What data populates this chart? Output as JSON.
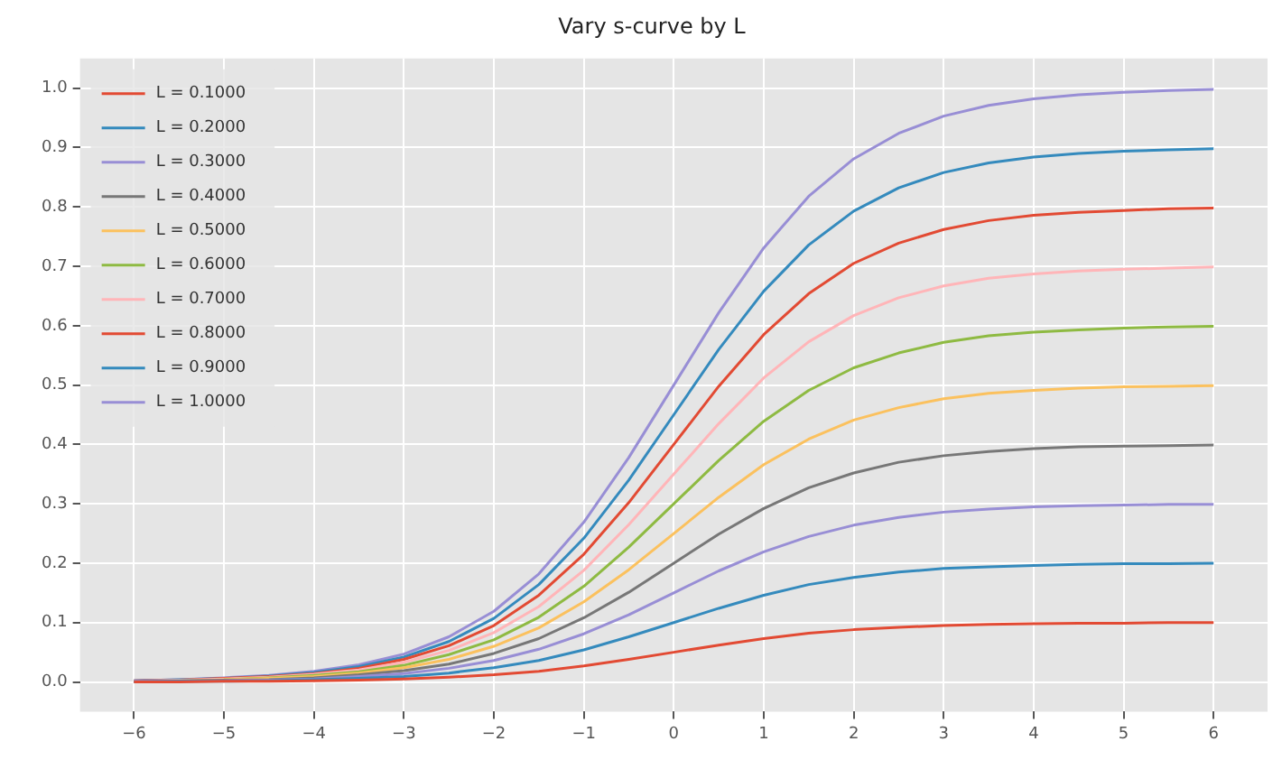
{
  "chart_data": {
    "type": "line",
    "title": "Vary s-curve by L",
    "x": [
      -6,
      -5.5,
      -5,
      -4.5,
      -4,
      -3.5,
      -3,
      -2.5,
      -2,
      -1.5,
      -1,
      -0.5,
      0,
      0.5,
      1,
      1.5,
      2,
      2.5,
      3,
      3.5,
      4,
      4.5,
      5,
      5.5,
      6
    ],
    "series": [
      {
        "name": "L = 0.1000",
        "color": "#e24a33",
        "values": [
          0.0,
          0.0,
          0.001,
          0.001,
          0.002,
          0.003,
          0.005,
          0.008,
          0.012,
          0.018,
          0.027,
          0.038,
          0.05,
          0.062,
          0.073,
          0.082,
          0.088,
          0.092,
          0.095,
          0.097,
          0.098,
          0.099,
          0.099,
          0.1,
          0.1
        ]
      },
      {
        "name": "L = 0.2000",
        "color": "#348abd",
        "values": [
          0,
          0.001,
          0.001,
          0.002,
          0.004,
          0.006,
          0.009,
          0.015,
          0.024,
          0.036,
          0.054,
          0.076,
          0.1,
          0.124,
          0.146,
          0.164,
          0.176,
          0.185,
          0.191,
          0.194,
          0.196,
          0.198,
          0.199,
          0.199,
          0.2
        ]
      },
      {
        "name": "L = 0.3000",
        "color": "#988ed5",
        "values": [
          0.001,
          0.001,
          0.002,
          0.003,
          0.005,
          0.009,
          0.014,
          0.023,
          0.036,
          0.055,
          0.081,
          0.113,
          0.15,
          0.187,
          0.219,
          0.245,
          0.264,
          0.277,
          0.286,
          0.291,
          0.295,
          0.297,
          0.298,
          0.299,
          0.299
        ]
      },
      {
        "name": "L = 0.4000",
        "color": "#777777",
        "values": [
          0.001,
          0.002,
          0.003,
          0.004,
          0.007,
          0.012,
          0.019,
          0.03,
          0.048,
          0.073,
          0.108,
          0.151,
          0.2,
          0.249,
          0.292,
          0.327,
          0.352,
          0.37,
          0.381,
          0.388,
          0.393,
          0.396,
          0.397,
          0.398,
          0.399
        ]
      },
      {
        "name": "L = 0.5000",
        "color": "#fbc15e",
        "values": [
          0.001,
          0.002,
          0.004,
          0.006,
          0.009,
          0.015,
          0.024,
          0.038,
          0.06,
          0.091,
          0.135,
          0.189,
          0.25,
          0.311,
          0.366,
          0.409,
          0.441,
          0.462,
          0.477,
          0.486,
          0.491,
          0.495,
          0.497,
          0.498,
          0.499
        ]
      },
      {
        "name": "L = 0.6000",
        "color": "#8eba42",
        "values": [
          null,
          null,
          0.004,
          0.007,
          0.011,
          0.017,
          0.028,
          0.046,
          0.071,
          0.109,
          0.161,
          0.227,
          0.3,
          0.373,
          0.439,
          0.491,
          0.529,
          0.554,
          0.572,
          0.583,
          0.589,
          0.593,
          0.596,
          0.598,
          0.599
        ]
      },
      {
        "name": "L = 0.7000",
        "color": "#ffb5b8",
        "values": [
          0.001,
          0.003,
          0.005,
          0.008,
          0.013,
          0.02,
          0.033,
          0.053,
          0.083,
          0.127,
          0.188,
          0.265,
          0.35,
          0.435,
          0.512,
          0.573,
          0.617,
          0.647,
          0.667,
          0.68,
          0.687,
          0.692,
          0.695,
          0.697,
          0.699
        ]
      },
      {
        "name": "L = 0.8000",
        "color": "#e24a33",
        "values": [
          0.002,
          0.003,
          0.006,
          0.009,
          0.014,
          0.023,
          0.038,
          0.061,
          0.095,
          0.146,
          0.215,
          0.302,
          0.4,
          0.498,
          0.585,
          0.654,
          0.705,
          0.739,
          0.762,
          0.777,
          0.786,
          0.791,
          0.794,
          0.797,
          0.798
        ]
      },
      {
        "name": "L = 0.9000",
        "color": "#348abd",
        "values": [
          0.002,
          0.004,
          0.006,
          0.01,
          0.016,
          0.026,
          0.042,
          0.068,
          0.107,
          0.164,
          0.242,
          0.34,
          0.45,
          0.56,
          0.658,
          0.736,
          0.793,
          0.832,
          0.858,
          0.874,
          0.884,
          0.89,
          0.894,
          0.896,
          0.898
        ]
      },
      {
        "name": "L = 1.0000",
        "color": "#988ed5",
        "values": [
          0.002,
          0.004,
          0.007,
          0.011,
          0.018,
          0.029,
          0.047,
          0.076,
          0.119,
          0.182,
          0.269,
          0.378,
          0.5,
          0.622,
          0.731,
          0.818,
          0.881,
          0.924,
          0.953,
          0.971,
          0.982,
          0.989,
          0.993,
          0.996,
          0.998
        ]
      }
    ],
    "xlim": [
      -6.6,
      6.6
    ],
    "xticks": [
      {
        "value": -6,
        "label": "−6"
      },
      {
        "value": -5,
        "label": "−5"
      },
      {
        "value": -4,
        "label": "−4"
      },
      {
        "value": -3,
        "label": "−3"
      },
      {
        "value": -2,
        "label": "−2"
      },
      {
        "value": -1,
        "label": "−1"
      },
      0,
      1,
      2,
      3,
      4,
      5,
      6
    ],
    "ylim": [
      -0.05,
      1.05
    ],
    "yticks": [
      {
        "value": 0,
        "label": "0.0"
      },
      0.1,
      0.2,
      0.3,
      0.4,
      0.5,
      0.6,
      0.7,
      0.8,
      0.9,
      {
        "value": 1,
        "label": "1.0"
      }
    ],
    "grid": true,
    "legend": "top left",
    "marker": "none",
    "line_style": "solid"
  }
}
